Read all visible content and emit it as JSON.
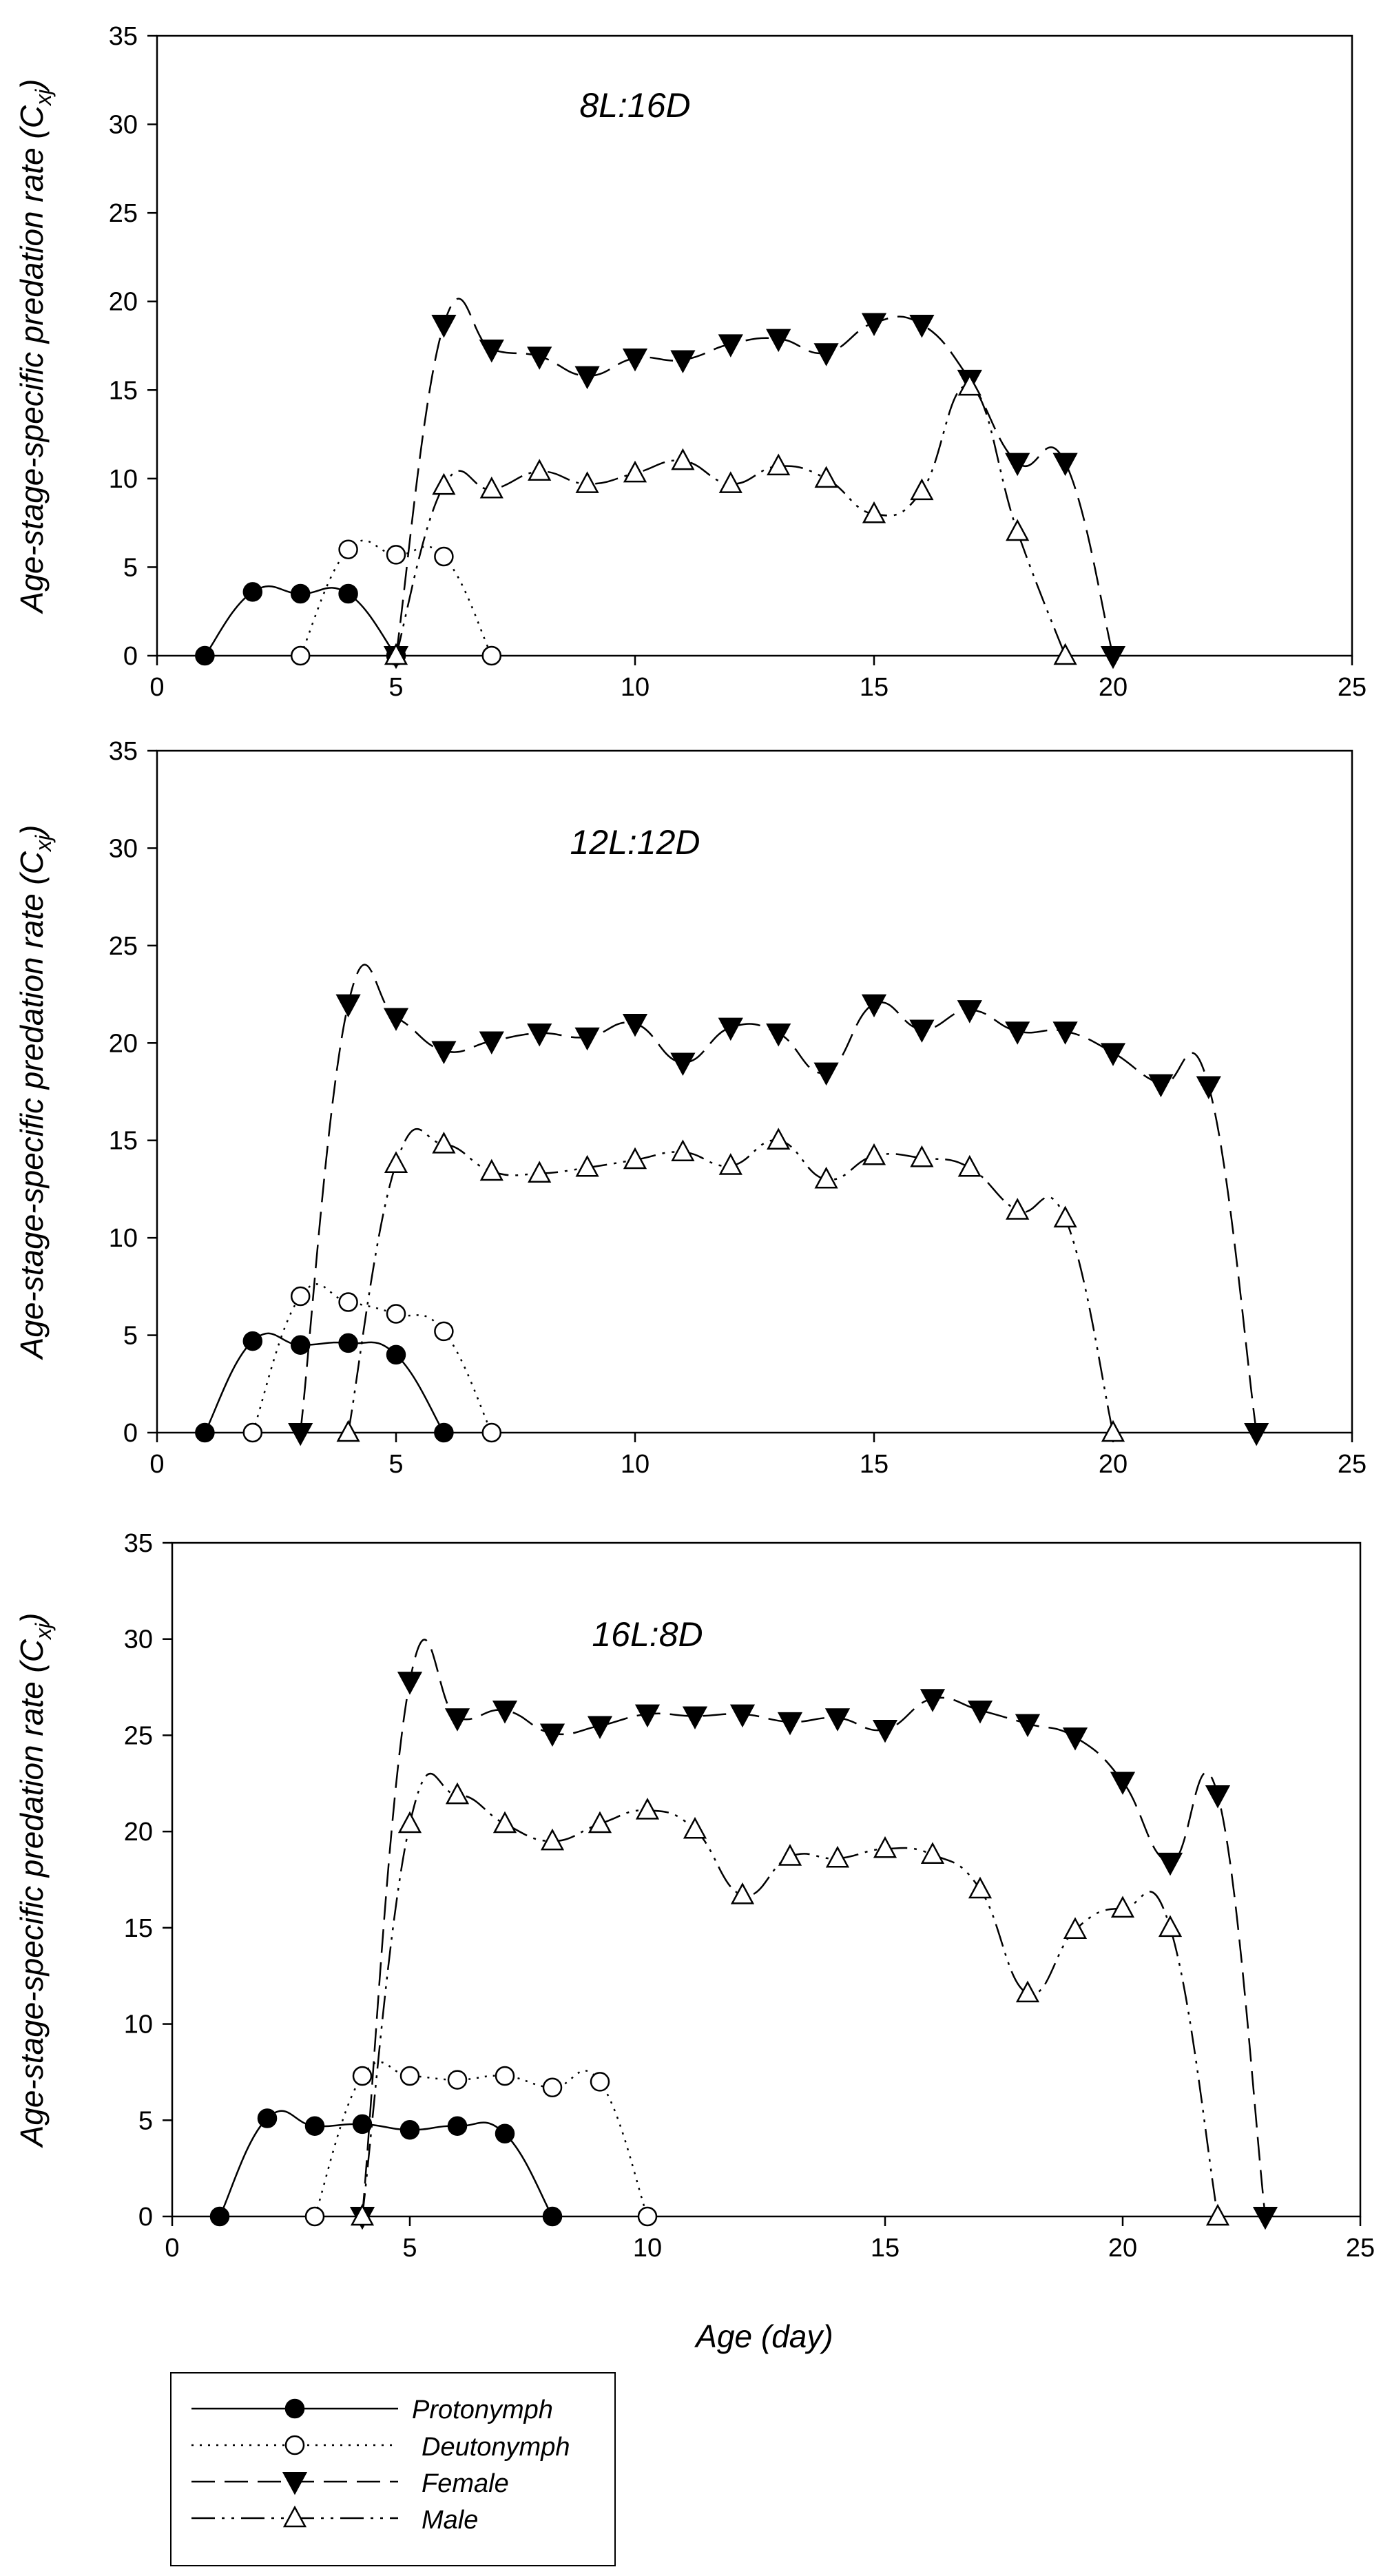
{
  "chart_data": [
    {
      "type": "line",
      "title": "8L:16D",
      "xlabel": "",
      "ylabel": "Age-stage-specific predation rate (C",
      "ylabel_subscript": "xj",
      "ylabel_suffix": ")",
      "xlim": [
        0,
        25
      ],
      "ylim": [
        0,
        35
      ],
      "xticks": [
        0,
        5,
        10,
        15,
        20,
        25
      ],
      "yticks": [
        0,
        5,
        10,
        15,
        20,
        25,
        30,
        35
      ],
      "series": [
        {
          "name": "Protonymph",
          "x": [
            1,
            2,
            3,
            4,
            5
          ],
          "y": [
            0,
            3.6,
            3.5,
            3.5,
            0
          ]
        },
        {
          "name": "Deutonymph",
          "x": [
            3,
            4,
            5,
            6,
            7
          ],
          "y": [
            0,
            6.0,
            5.7,
            5.6,
            0
          ]
        },
        {
          "name": "Female",
          "x": [
            5,
            6,
            7,
            8,
            9,
            10,
            11,
            12,
            13,
            14,
            15,
            16,
            17,
            18,
            19,
            20
          ],
          "y": [
            0,
            18.7,
            17.3,
            16.9,
            15.8,
            16.8,
            16.7,
            17.6,
            17.9,
            17.1,
            18.8,
            18.7,
            15.6,
            10.9,
            10.9,
            0
          ]
        },
        {
          "name": "Male",
          "x": [
            5,
            6,
            7,
            8,
            9,
            10,
            11,
            12,
            13,
            14,
            15,
            16,
            17,
            18,
            19
          ],
          "y": [
            0,
            9.6,
            9.4,
            10.4,
            9.7,
            10.3,
            11.0,
            9.7,
            10.7,
            10.0,
            8.0,
            9.3,
            15.2,
            7.0,
            0
          ]
        }
      ]
    },
    {
      "type": "line",
      "title": "12L:12D",
      "xlabel": "",
      "ylabel": "Age-stage-specific predation rate (C",
      "ylabel_subscript": "xj",
      "ylabel_suffix": ")",
      "xlim": [
        0,
        25
      ],
      "ylim": [
        0,
        35
      ],
      "xticks": [
        0,
        5,
        10,
        15,
        20,
        25
      ],
      "yticks": [
        0,
        5,
        10,
        15,
        20,
        25,
        30,
        35
      ],
      "series": [
        {
          "name": "Protonymph",
          "x": [
            1,
            2,
            3,
            4,
            5,
            6
          ],
          "y": [
            0,
            4.7,
            4.5,
            4.6,
            4.0,
            0
          ]
        },
        {
          "name": "Deutonymph",
          "x": [
            2,
            3,
            4,
            5,
            6,
            7
          ],
          "y": [
            0,
            7.0,
            6.7,
            6.1,
            5.2,
            0
          ]
        },
        {
          "name": "Female",
          "x": [
            3,
            4,
            5,
            6,
            7,
            8,
            9,
            10,
            11,
            12,
            13,
            14,
            15,
            16,
            17,
            18,
            19,
            20,
            21,
            22,
            23
          ],
          "y": [
            0,
            22.0,
            21.3,
            19.6,
            20.1,
            20.5,
            20.3,
            21.0,
            19.0,
            20.8,
            20.5,
            18.5,
            22.0,
            20.7,
            21.7,
            20.6,
            20.6,
            19.5,
            17.9,
            17.8,
            0
          ]
        },
        {
          "name": "Male",
          "x": [
            4,
            5,
            6,
            7,
            8,
            9,
            10,
            11,
            12,
            13,
            14,
            15,
            16,
            17,
            18,
            19,
            20
          ],
          "y": [
            0,
            13.8,
            14.8,
            13.4,
            13.3,
            13.6,
            14.0,
            14.4,
            13.7,
            15.0,
            13.0,
            14.2,
            14.1,
            13.6,
            11.4,
            11.0,
            0
          ]
        }
      ]
    },
    {
      "type": "line",
      "title": "16L:8D",
      "xlabel": "Age (day)",
      "ylabel": "Age-stage-specific predation rate (C",
      "ylabel_subscript": "xj",
      "ylabel_suffix": ")",
      "xlim": [
        0,
        25
      ],
      "ylim": [
        0,
        35
      ],
      "xticks": [
        0,
        5,
        10,
        15,
        20,
        25
      ],
      "yticks": [
        0,
        5,
        10,
        15,
        20,
        25,
        30,
        35
      ],
      "series": [
        {
          "name": "Protonymph",
          "x": [
            1,
            2,
            3,
            4,
            5,
            6,
            7,
            8
          ],
          "y": [
            0,
            5.1,
            4.7,
            4.8,
            4.5,
            4.7,
            4.3,
            0
          ]
        },
        {
          "name": "Deutonymph",
          "x": [
            3,
            4,
            5,
            6,
            7,
            8,
            9,
            10
          ],
          "y": [
            0,
            7.3,
            7.3,
            7.1,
            7.3,
            6.7,
            7.0,
            0
          ]
        },
        {
          "name": "Female",
          "x": [
            4,
            5,
            6,
            7,
            8,
            9,
            10,
            11,
            12,
            13,
            14,
            15,
            16,
            17,
            18,
            19,
            20,
            21,
            22,
            23
          ],
          "y": [
            0,
            27.8,
            25.9,
            26.3,
            25.1,
            25.5,
            26.1,
            26.0,
            26.1,
            25.7,
            25.9,
            25.3,
            26.9,
            26.3,
            25.6,
            24.9,
            22.6,
            18.4,
            21.9,
            0
          ]
        },
        {
          "name": "Male",
          "x": [
            4,
            5,
            6,
            7,
            8,
            9,
            10,
            11,
            12,
            13,
            14,
            15,
            16,
            17,
            18,
            19,
            20,
            21,
            22
          ],
          "y": [
            0,
            20.4,
            21.9,
            20.4,
            19.5,
            20.4,
            21.1,
            20.1,
            16.7,
            18.7,
            18.6,
            19.1,
            18.8,
            17.0,
            11.6,
            14.9,
            16.0,
            15.0,
            0
          ]
        }
      ]
    }
  ],
  "legend": {
    "items": [
      {
        "label": "Protonymph",
        "series": "Protonymph"
      },
      {
        "label": "Deutonymph",
        "series": "Deutonymph"
      },
      {
        "label": "Female",
        "series": "Female"
      },
      {
        "label": "Male",
        "series": "Male"
      }
    ]
  },
  "colors": {
    "line": "#000000",
    "background": "#ffffff"
  }
}
